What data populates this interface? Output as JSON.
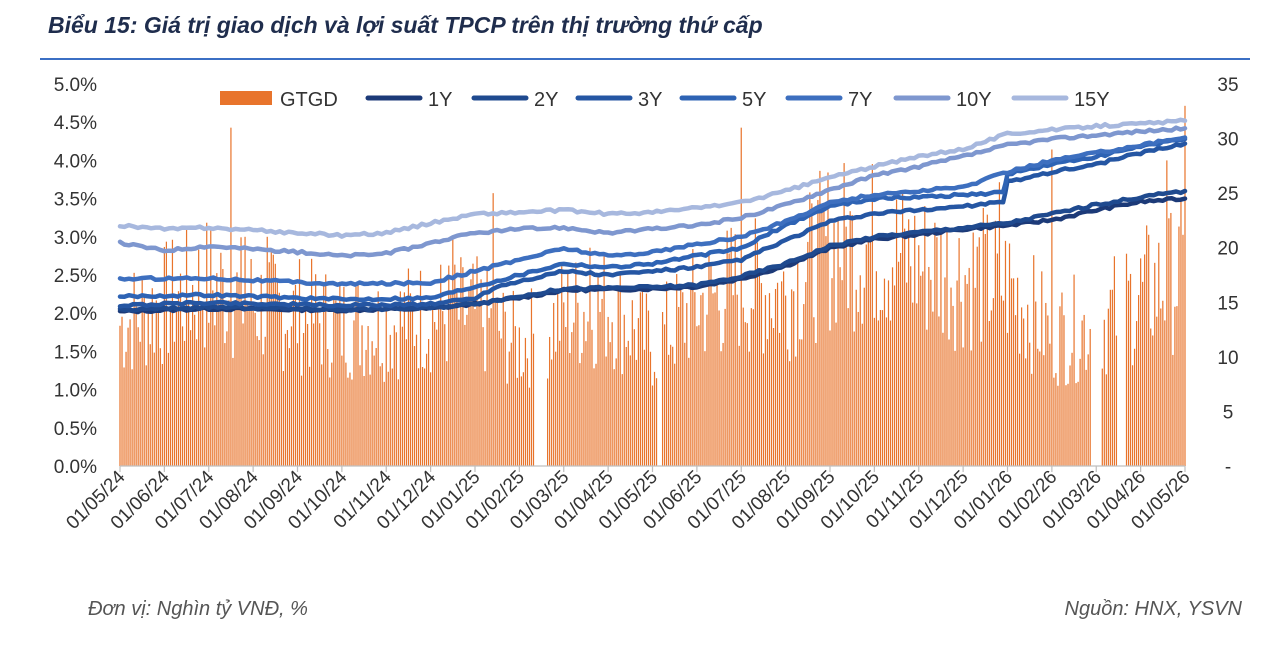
{
  "title": "Biểu 15: Giá trị giao dịch và lợi suất TPCP trên thị trường thứ cấp",
  "footer": {
    "unit": "Đơn vị: Nghìn tỷ VNĐ, %",
    "source": "Nguồn: HNX, YSVN"
  },
  "chart_data": {
    "type": "bar+line",
    "x_ticks": [
      "01/05/24",
      "01/06/24",
      "01/07/24",
      "01/08/24",
      "01/09/24",
      "01/10/24",
      "01/11/24",
      "01/12/24",
      "01/01/25",
      "01/02/25",
      "01/03/25",
      "01/04/25",
      "01/05/25",
      "01/06/25",
      "01/07/25",
      "01/08/25",
      "01/09/25",
      "01/10/25",
      "01/11/25",
      "01/12/25",
      "01/01/26",
      "01/02/26",
      "01/03/26",
      "01/04/26",
      "01/05/26"
    ],
    "y_left": {
      "ylim": [
        0,
        5
      ],
      "ticks": [
        "0.0%",
        "0.5%",
        "1.0%",
        "1.5%",
        "2.0%",
        "2.5%",
        "3.0%",
        "3.5%",
        "4.0%",
        "4.5%",
        "5.0%"
      ]
    },
    "y_right": {
      "ylim": [
        0,
        35
      ],
      "ticks": [
        "-",
        "5",
        "10",
        "15",
        "20",
        "25",
        "30",
        "35"
      ]
    },
    "bar_series": {
      "name": "GTGD",
      "color": "#e8742c",
      "axis": "right",
      "monthly_avg": [
        14,
        16,
        18,
        16,
        15,
        14,
        14,
        15,
        15,
        12,
        15,
        16,
        12,
        16,
        18,
        17,
        22,
        22,
        20,
        19,
        18,
        13,
        14,
        17,
        19
      ],
      "peaks": [
        {
          "month": 2.5,
          "value": 31
        },
        {
          "month": 2.8,
          "value": 21
        },
        {
          "month": 3.3,
          "value": 21
        },
        {
          "month": 7.5,
          "value": 21
        },
        {
          "month": 8.4,
          "value": 25
        },
        {
          "month": 10.6,
          "value": 20
        },
        {
          "month": 14.0,
          "value": 31
        },
        {
          "month": 15.8,
          "value": 24
        },
        {
          "month": 16.5,
          "value": 23
        },
        {
          "month": 19.8,
          "value": 26
        },
        {
          "month": 21.0,
          "value": 29
        },
        {
          "month": 22.5,
          "value": 27
        },
        {
          "month": 23.6,
          "value": 28
        },
        {
          "month": 24.0,
          "value": 33
        }
      ],
      "gaps": [
        [
          9.35,
          9.6
        ],
        [
          12.1,
          12.2
        ],
        [
          21.9,
          22.1
        ],
        [
          22.5,
          22.65
        ]
      ]
    },
    "line_series": [
      {
        "name": "1Y",
        "color": "#1c3a78",
        "points": [
          [
            0,
            2.02
          ],
          [
            2,
            2.06
          ],
          [
            5,
            2.04
          ],
          [
            7,
            2.06
          ],
          [
            8,
            2.12
          ],
          [
            9,
            2.2
          ],
          [
            10,
            2.3
          ],
          [
            12,
            2.32
          ],
          [
            13,
            2.35
          ],
          [
            14,
            2.45
          ],
          [
            15,
            2.62
          ],
          [
            16,
            2.85
          ],
          [
            17,
            2.97
          ],
          [
            18,
            3.03
          ],
          [
            19,
            3.1
          ],
          [
            20,
            3.15
          ],
          [
            21,
            3.22
          ],
          [
            22,
            3.35
          ],
          [
            23,
            3.46
          ],
          [
            24,
            3.5
          ]
        ]
      },
      {
        "name": "2Y",
        "color": "#1f4a8f",
        "points": [
          [
            0,
            2.04
          ],
          [
            2,
            2.08
          ],
          [
            5,
            2.05
          ],
          [
            7,
            2.07
          ],
          [
            8,
            2.13
          ],
          [
            9,
            2.22
          ],
          [
            10,
            2.32
          ],
          [
            12,
            2.34
          ],
          [
            13,
            2.37
          ],
          [
            14,
            2.48
          ],
          [
            15,
            2.65
          ],
          [
            16,
            2.88
          ],
          [
            17,
            3.0
          ],
          [
            18,
            3.06
          ],
          [
            19,
            3.12
          ],
          [
            20,
            3.18
          ],
          [
            21,
            3.3
          ],
          [
            22,
            3.42
          ],
          [
            23,
            3.52
          ],
          [
            24,
            3.6
          ]
        ]
      },
      {
        "name": "3Y",
        "color": "#2556a3",
        "points": [
          [
            0,
            2.1
          ],
          [
            2,
            2.14
          ],
          [
            5,
            2.1
          ],
          [
            7,
            2.12
          ],
          [
            8,
            2.2
          ],
          [
            8.5,
            2.35
          ],
          [
            9,
            2.42
          ],
          [
            10,
            2.55
          ],
          [
            11,
            2.5
          ],
          [
            12,
            2.55
          ],
          [
            13,
            2.6
          ],
          [
            14,
            2.7
          ],
          [
            15,
            2.95
          ],
          [
            16,
            3.2
          ],
          [
            17,
            3.3
          ],
          [
            18,
            3.35
          ],
          [
            19,
            3.4
          ],
          [
            19.9,
            3.45
          ],
          [
            20,
            3.72
          ],
          [
            21,
            3.85
          ],
          [
            22,
            3.95
          ],
          [
            23,
            4.1
          ],
          [
            24,
            4.22
          ]
        ]
      },
      {
        "name": "5Y",
        "color": "#2e63b4",
        "points": [
          [
            0,
            2.22
          ],
          [
            2,
            2.24
          ],
          [
            5,
            2.18
          ],
          [
            7,
            2.2
          ],
          [
            8,
            2.35
          ],
          [
            9,
            2.5
          ],
          [
            10,
            2.65
          ],
          [
            11,
            2.6
          ],
          [
            12,
            2.65
          ],
          [
            13,
            2.75
          ],
          [
            14,
            2.85
          ],
          [
            15,
            3.15
          ],
          [
            16,
            3.4
          ],
          [
            17,
            3.5
          ],
          [
            18,
            3.52
          ],
          [
            19,
            3.55
          ],
          [
            19.9,
            3.58
          ],
          [
            20,
            3.82
          ],
          [
            21,
            3.95
          ],
          [
            22,
            4.05
          ],
          [
            23,
            4.18
          ],
          [
            24,
            4.28
          ]
        ]
      },
      {
        "name": "7Y",
        "color": "#3d6fbf",
        "points": [
          [
            0,
            2.45
          ],
          [
            2,
            2.46
          ],
          [
            5,
            2.38
          ],
          [
            7,
            2.4
          ],
          [
            8,
            2.55
          ],
          [
            9,
            2.7
          ],
          [
            10,
            2.85
          ],
          [
            11,
            2.75
          ],
          [
            12,
            2.8
          ],
          [
            13,
            2.9
          ],
          [
            14,
            3.0
          ],
          [
            15,
            3.2
          ],
          [
            16,
            3.45
          ],
          [
            17,
            3.55
          ],
          [
            18,
            3.6
          ],
          [
            19,
            3.65
          ],
          [
            20,
            3.85
          ],
          [
            21,
            4.0
          ],
          [
            22,
            4.1
          ],
          [
            23,
            4.2
          ],
          [
            24,
            4.3
          ]
        ]
      },
      {
        "name": "10Y",
        "color": "#7e97cf",
        "points": [
          [
            0,
            2.92
          ],
          [
            1,
            2.82
          ],
          [
            2,
            2.88
          ],
          [
            4,
            2.8
          ],
          [
            5,
            2.75
          ],
          [
            6,
            2.78
          ],
          [
            7,
            2.92
          ],
          [
            8,
            3.05
          ],
          [
            9,
            3.1
          ],
          [
            10,
            3.12
          ],
          [
            11,
            3.05
          ],
          [
            12,
            3.1
          ],
          [
            13,
            3.15
          ],
          [
            14,
            3.25
          ],
          [
            15,
            3.42
          ],
          [
            16,
            3.62
          ],
          [
            17,
            3.8
          ],
          [
            18,
            3.92
          ],
          [
            19,
            4.05
          ],
          [
            20,
            4.2
          ],
          [
            21,
            4.28
          ],
          [
            22,
            4.33
          ],
          [
            23,
            4.38
          ],
          [
            24,
            4.42
          ]
        ]
      },
      {
        "name": "15Y",
        "color": "#a7b8de",
        "points": [
          [
            0,
            3.15
          ],
          [
            1,
            3.1
          ],
          [
            2,
            3.12
          ],
          [
            4,
            3.05
          ],
          [
            5,
            3.02
          ],
          [
            6,
            3.05
          ],
          [
            7,
            3.18
          ],
          [
            8,
            3.3
          ],
          [
            9,
            3.32
          ],
          [
            10,
            3.35
          ],
          [
            11,
            3.3
          ],
          [
            12,
            3.32
          ],
          [
            13,
            3.38
          ],
          [
            14,
            3.45
          ],
          [
            15,
            3.6
          ],
          [
            16,
            3.78
          ],
          [
            17,
            3.92
          ],
          [
            18,
            4.05
          ],
          [
            19,
            4.15
          ],
          [
            20,
            4.35
          ],
          [
            21,
            4.4
          ],
          [
            22,
            4.45
          ],
          [
            23,
            4.48
          ],
          [
            24,
            4.52
          ]
        ]
      }
    ],
    "legend": [
      "GTGD",
      "1Y",
      "2Y",
      "3Y",
      "5Y",
      "7Y",
      "10Y",
      "15Y"
    ],
    "legend_position": "top"
  }
}
